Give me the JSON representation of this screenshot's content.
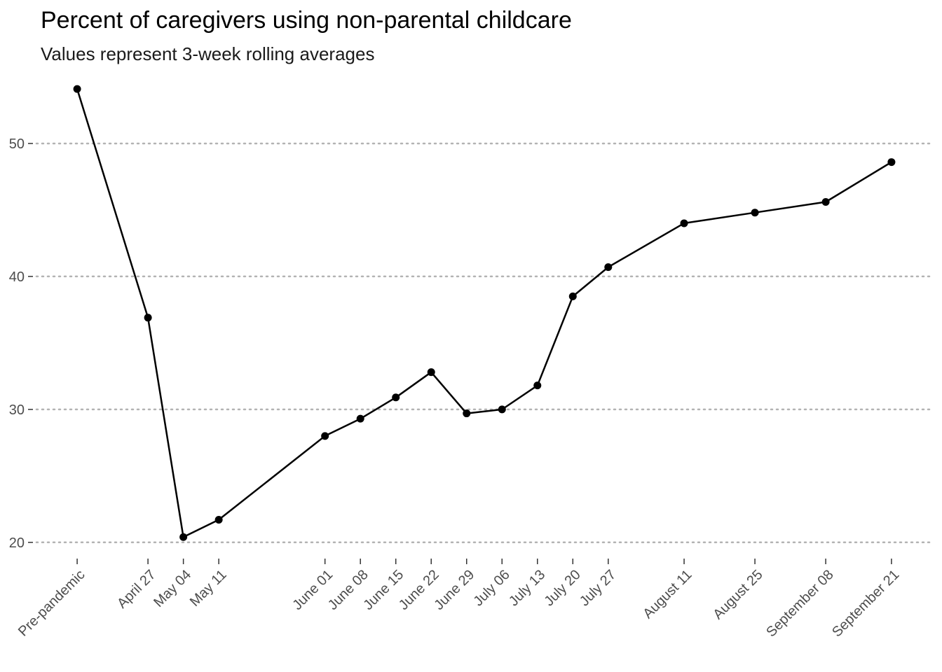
{
  "chart_data": {
    "type": "line",
    "title": "Percent of caregivers using non-parental childcare",
    "subtitle": "Values represent 3-week rolling averages",
    "xlabel": "",
    "ylabel": "",
    "ylim": [
      19.2,
      55
    ],
    "yticks": [
      20,
      30,
      40,
      50
    ],
    "grid": "horizontal dotted",
    "series": [
      {
        "points": [
          {
            "label": "Pre-pandemic",
            "day": -14,
            "value": 54.1
          },
          {
            "label": "April 27",
            "day": 0,
            "value": 36.9
          },
          {
            "label": "May 04",
            "day": 7,
            "value": 20.4
          },
          {
            "label": "May 11",
            "day": 14,
            "value": 21.7
          },
          {
            "label": "June 01",
            "day": 35,
            "value": 28.0
          },
          {
            "label": "June 08",
            "day": 42,
            "value": 29.3
          },
          {
            "label": "June 15",
            "day": 49,
            "value": 30.9
          },
          {
            "label": "June 22",
            "day": 56,
            "value": 32.8
          },
          {
            "label": "June 29",
            "day": 63,
            "value": 29.7
          },
          {
            "label": "July 06",
            "day": 70,
            "value": 30.0
          },
          {
            "label": "July 13",
            "day": 77,
            "value": 31.8
          },
          {
            "label": "July 20",
            "day": 84,
            "value": 38.5
          },
          {
            "label": "July 27",
            "day": 91,
            "value": 40.7
          },
          {
            "label": "August 11",
            "day": 106,
            "value": 44.0
          },
          {
            "label": "August 25",
            "day": 120,
            "value": 44.8
          },
          {
            "label": "September 08",
            "day": 134,
            "value": 45.6
          },
          {
            "label": "September 21",
            "day": 147,
            "value": 48.6
          }
        ]
      }
    ],
    "colors": {
      "line": "#000000",
      "grid": "#b3b3b3",
      "tick_text": "#4d4d4d"
    }
  }
}
